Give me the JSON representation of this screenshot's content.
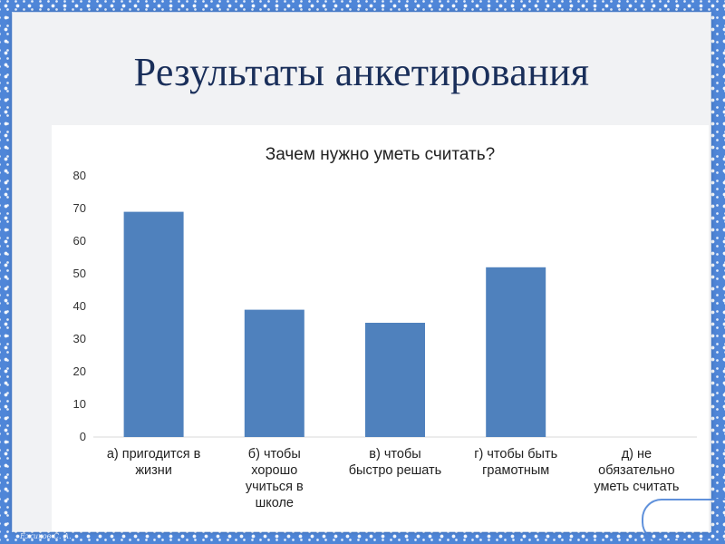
{
  "slide": {
    "title": "Результаты анкетирования"
  },
  "colors": {
    "bar": "#4f81bd",
    "frame": "#4f86d8",
    "gridline": "#d9d9d9",
    "title_text": "#1a2f5a"
  },
  "chart_data": {
    "type": "bar",
    "title": "Зачем нужно уметь считать?",
    "xlabel": "",
    "ylabel": "",
    "ylim": [
      0,
      80
    ],
    "yticks": [
      "0",
      "10",
      "20",
      "30",
      "40",
      "50",
      "60",
      "70",
      "80"
    ],
    "grid": false,
    "categories": [
      "а) пригодится в\nжизни",
      "б) чтобы\nхорошо\nучиться в\nшколе",
      "в) чтобы\nбыстро решать",
      "г) чтобы быть\nграмотным",
      "д) не\nобязательно\nуметь считать"
    ],
    "values": [
      69,
      39,
      35,
      52,
      0
    ]
  }
}
